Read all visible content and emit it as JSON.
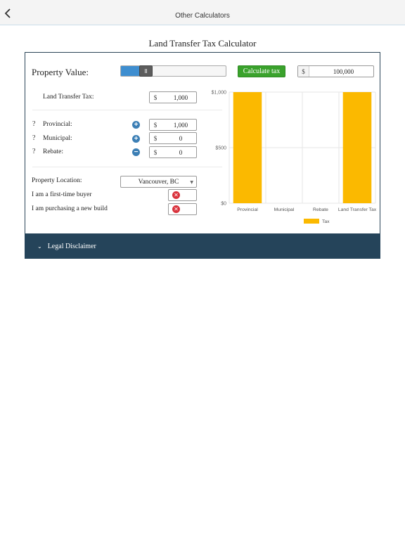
{
  "topbar": {
    "title": "Other Calculators"
  },
  "page": {
    "title": "Land Transfer Tax Calculator"
  },
  "calculator": {
    "property_value_label": "Property Value:",
    "slider_level_pct": 0.2,
    "calculate_label": "Calculate tax",
    "currency_symbol": "$",
    "property_value": "100,000",
    "land_transfer_tax_label": "Land Transfer Tax:",
    "land_transfer_tax_value": "1,000",
    "rows": [
      {
        "help": "?",
        "label": "Provincial:",
        "op": "+",
        "op_name": "plus",
        "value": "1,000"
      },
      {
        "help": "?",
        "label": "Municipal:",
        "op": "+",
        "op_name": "plus",
        "value": "0"
      },
      {
        "help": "?",
        "label": "Rebate:",
        "op": "−",
        "op_name": "minus",
        "value": "0"
      }
    ],
    "location_label": "Property Location:",
    "location_value": "Vancouver, BC",
    "first_time_buyer_label": "I am a first-time buyer",
    "new_build_label": "I am purchasing a new build",
    "toggle_off_symbol": "✕"
  },
  "chart_data": {
    "type": "bar",
    "categories": [
      "Provincial",
      "Municipal",
      "Rebate",
      "Land Transfer Tax"
    ],
    "series": [
      {
        "name": "Tax",
        "values": [
          1000,
          0,
          0,
          1000
        ],
        "color": "#fbb900"
      }
    ],
    "yticks": [
      "$0",
      "$500",
      "$1,000"
    ],
    "ylim": [
      0,
      1000
    ],
    "grid": true,
    "legend": "bottom"
  },
  "footer": {
    "disclaimer_label": "Legal Disclaimer",
    "chevron": "⌄"
  },
  "colors": {
    "accent": "#3e8ed0",
    "button": "#3aa22c",
    "footer": "#25445a",
    "bar": "#fbb900",
    "off": "#d9323c"
  }
}
